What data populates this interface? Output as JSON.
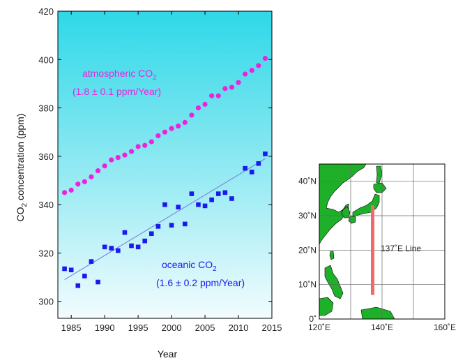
{
  "chart_data": [
    {
      "type": "scatter",
      "title": "",
      "xlabel": "Year",
      "ylabel_main": "CO",
      "ylabel_sub": "2",
      "ylabel_rest": " concentration (ppm)",
      "xlim": [
        1983,
        2015
      ],
      "ylim": [
        293,
        420
      ],
      "xticks": [
        1985,
        1990,
        1995,
        2000,
        2005,
        2010,
        2015
      ],
      "yticks": [
        300,
        320,
        340,
        360,
        380,
        400,
        420
      ],
      "background": {
        "top_color": "#2ed8e8",
        "bottom_color": "#f2fcfe"
      },
      "series": [
        {
          "id": "atmospheric",
          "label_main": "atmospheric CO",
          "label_sub": "2",
          "rate": "(1.8 ± 0.1 ppm/Year)",
          "color": "#ee22dd",
          "marker": "circle",
          "x": [
            1984,
            1985,
            1986,
            1987,
            1988,
            1989,
            1990,
            1991,
            1992,
            1993,
            1994,
            1995,
            1996,
            1997,
            1998,
            1999,
            2000,
            2001,
            2002,
            2003,
            2004,
            2005,
            2006,
            2007,
            2008,
            2009,
            2010,
            2011,
            2012,
            2013,
            2014
          ],
          "y": [
            345.0,
            346.0,
            348.5,
            349.5,
            351.5,
            354.0,
            356.0,
            358.5,
            359.5,
            360.5,
            362.0,
            364.0,
            364.5,
            366.0,
            368.5,
            370.0,
            371.5,
            372.5,
            374.0,
            377.0,
            380.0,
            381.5,
            385.0,
            385.0,
            388.0,
            388.5,
            390.5,
            394.0,
            395.5,
            397.5,
            400.5
          ]
        },
        {
          "id": "oceanic",
          "label_main": "oceanic CO",
          "label_sub": "2",
          "rate": "(1.6 ± 0.2 ppm/Year)",
          "color": "#1a1aee",
          "marker": "square",
          "x": [
            1984,
            1985,
            1986,
            1987,
            1988,
            1989,
            1990,
            1991,
            1992,
            1993,
            1994,
            1995,
            1996,
            1997,
            1998,
            1999,
            2000,
            2001,
            2002,
            2003,
            2004,
            2005,
            2006,
            2007,
            2008,
            2009,
            2011,
            2012,
            2013,
            2014
          ],
          "y": [
            313.5,
            313.0,
            306.5,
            310.5,
            316.5,
            308.0,
            322.5,
            322.0,
            321.0,
            328.5,
            323.0,
            322.5,
            325.0,
            328.0,
            331.0,
            340.0,
            331.5,
            339.0,
            332.0,
            344.5,
            340.0,
            339.5,
            342.0,
            344.5,
            345.0,
            342.5,
            355.0,
            353.5,
            357.0,
            361.0
          ],
          "trend": {
            "x": [
              1984,
              2014
            ],
            "y": [
              309.0,
              359.0
            ],
            "color": "#7777dd"
          }
        }
      ]
    },
    {
      "type": "map",
      "title": "",
      "region": "western North Pacific",
      "lon_range": [
        120,
        160
      ],
      "lat_range": [
        0,
        45
      ],
      "xticks": [
        "120˚E",
        "140˚E",
        "160˚E"
      ],
      "yticks": [
        "0˚",
        "10˚N",
        "20˚N",
        "30˚N",
        "40˚N"
      ],
      "line_label": "137˚E Line",
      "line": {
        "lon": 137,
        "lat_from": 7,
        "lat_to": 33,
        "color": "#f06a6a"
      },
      "land_color": "#1fb02a"
    }
  ]
}
